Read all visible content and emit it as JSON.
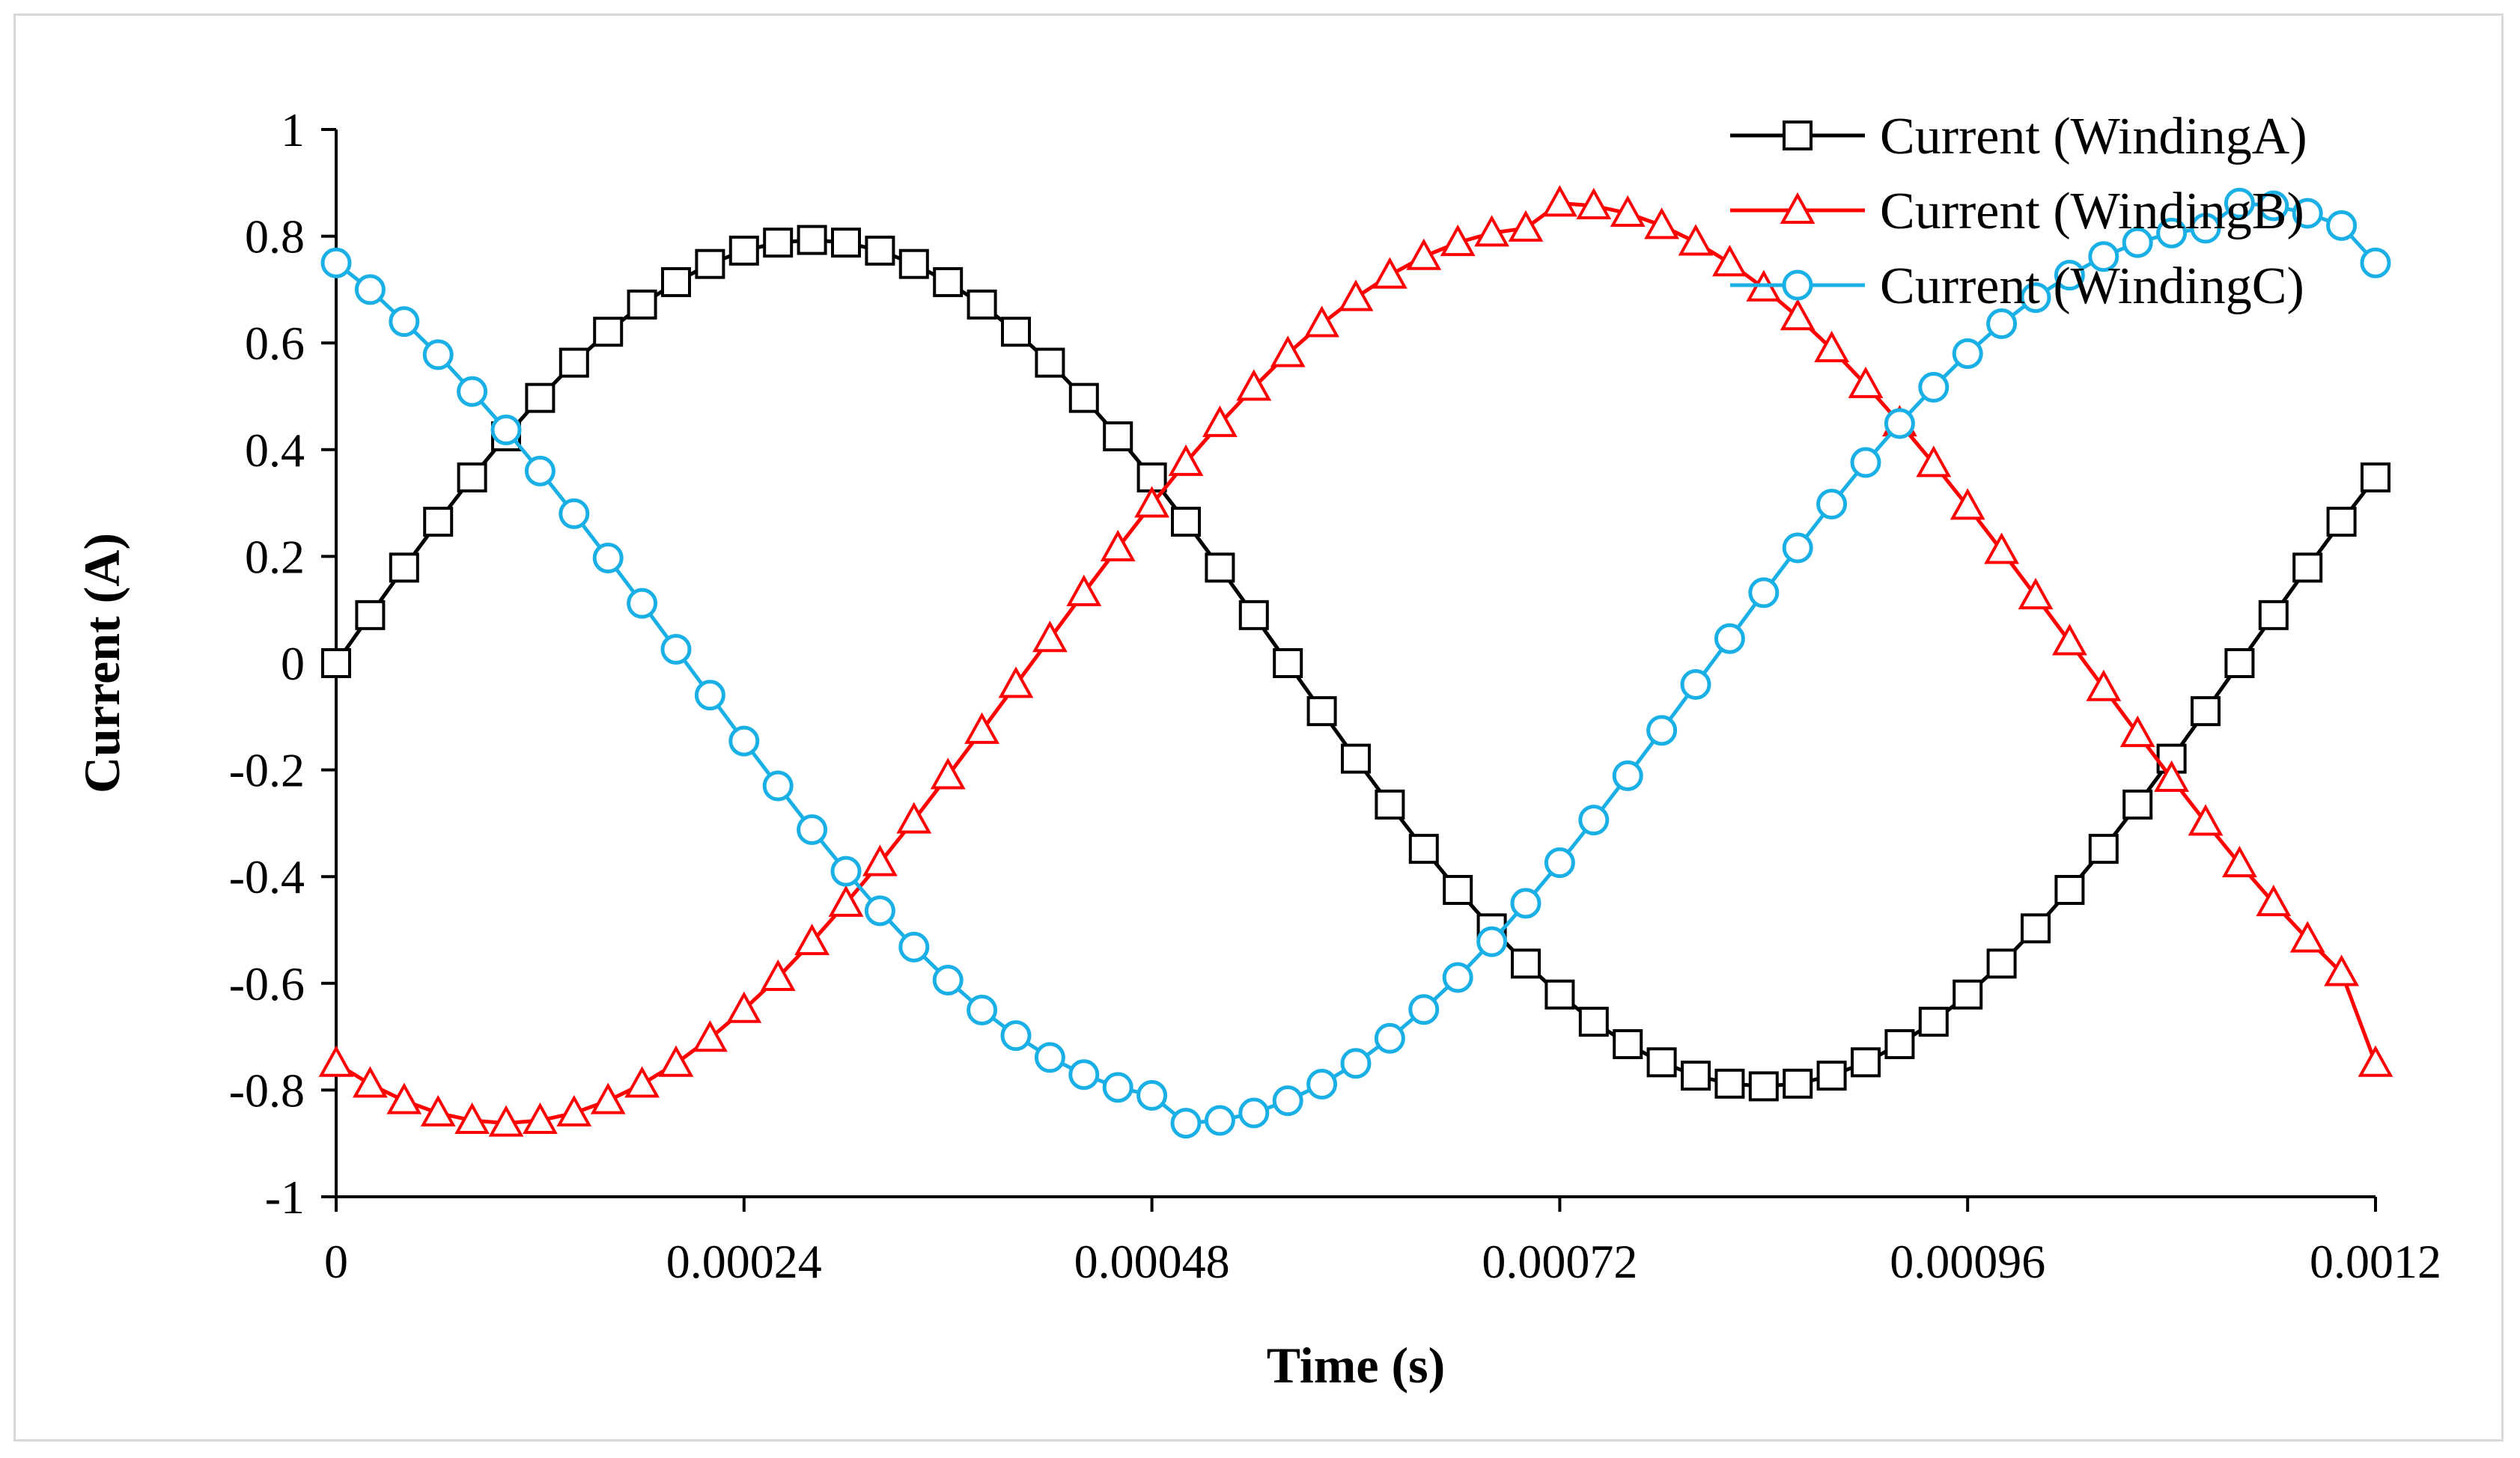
{
  "chart_data": {
    "type": "line",
    "title": "",
    "xlabel": "Time (s)",
    "ylabel": "Current (A)",
    "xlim": [
      0,
      0.0012
    ],
    "ylim": [
      -1,
      1
    ],
    "x_ticks": [
      0,
      0.00024,
      0.00048,
      0.00072,
      0.00096,
      0.0012
    ],
    "x_tick_labels": [
      "0",
      "0.00024",
      "0.00048",
      "0.00072",
      "0.00096",
      "0.0012"
    ],
    "y_ticks": [
      1,
      0.8,
      0.6,
      0.4,
      0.2,
      0,
      -0.2,
      -0.4,
      -0.6,
      -0.8,
      -1
    ],
    "y_tick_labels": [
      "1",
      "0.8",
      "0.6",
      "0.4",
      "0.2",
      "0",
      "-0.2",
      "-0.4",
      "-0.6",
      "-0.8",
      "-1"
    ],
    "grid": false,
    "legend_position": "top-right",
    "x": [
      0,
      2e-05,
      4e-05,
      6e-05,
      8e-05,
      0.0001,
      0.00012,
      0.00014,
      0.00016,
      0.00018,
      0.0002,
      0.00022,
      0.00024,
      0.00026,
      0.00028,
      0.0003,
      0.00032,
      0.00034,
      0.00036,
      0.00038,
      0.0004,
      0.00042,
      0.00044,
      0.00046,
      0.00048,
      0.0005,
      0.00052,
      0.00054,
      0.00056,
      0.00058,
      0.0006,
      0.00062,
      0.00064,
      0.00066,
      0.00068,
      0.0007,
      0.00072,
      0.00074,
      0.00076,
      0.00078,
      0.0008,
      0.00082,
      0.00084,
      0.00086,
      0.00088,
      0.0009,
      0.00092,
      0.00094,
      0.00096,
      0.00098,
      0.001,
      0.00102,
      0.00104,
      0.00106,
      0.00108,
      0.0011,
      0.00112,
      0.00114,
      0.00116,
      0.00118,
      0.0012
    ],
    "series": [
      {
        "name": "Current (WindingA)",
        "color": "#000000",
        "marker": "square",
        "values": [
          0,
          0.09,
          0.179,
          0.265,
          0.348,
          0.425,
          0.497,
          0.563,
          0.621,
          0.672,
          0.714,
          0.748,
          0.773,
          0.788,
          0.793,
          0.788,
          0.773,
          0.748,
          0.714,
          0.672,
          0.621,
          0.563,
          0.497,
          0.425,
          0.348,
          0.265,
          0.179,
          0.09,
          0,
          -0.09,
          -0.179,
          -0.265,
          -0.348,
          -0.425,
          -0.497,
          -0.563,
          -0.621,
          -0.672,
          -0.714,
          -0.748,
          -0.773,
          -0.788,
          -0.793,
          -0.788,
          -0.773,
          -0.748,
          -0.714,
          -0.672,
          -0.621,
          -0.563,
          -0.497,
          -0.425,
          -0.348,
          -0.265,
          -0.179,
          -0.09,
          0,
          0.09,
          0.179,
          0.265,
          0.348
        ]
      },
      {
        "name": "Current (WindingB)",
        "color": "#ff0000",
        "marker": "triangle",
        "values": [
          -0.75,
          -0.789,
          -0.82,
          -0.843,
          -0.857,
          -0.862,
          -0.857,
          -0.843,
          -0.82,
          -0.789,
          -0.75,
          -0.703,
          -0.649,
          -0.589,
          -0.522,
          -0.45,
          -0.374,
          -0.294,
          -0.211,
          -0.126,
          -0.04,
          0.046,
          0.132,
          0.216,
          0.298,
          0.376,
          0.449,
          0.517,
          0.58,
          0.636,
          0.685,
          0.727,
          0.762,
          0.788,
          0.806,
          0.815,
          0.862,
          0.857,
          0.843,
          0.82,
          0.789,
          0.75,
          0.703,
          0.649,
          0.589,
          0.522,
          0.45,
          0.374,
          0.294,
          0.211,
          0.126,
          0.04,
          -0.046,
          -0.132,
          -0.216,
          -0.298,
          -0.376,
          -0.449,
          -0.517,
          -0.58,
          -0.75
        ]
      },
      {
        "name": "Current (WindingC)",
        "color": "#1ab0e6",
        "marker": "circle",
        "values": [
          0.75,
          0.7,
          0.64,
          0.578,
          0.509,
          0.437,
          0.36,
          0.28,
          0.197,
          0.112,
          0.026,
          -0.06,
          -0.146,
          -0.23,
          -0.312,
          -0.39,
          -0.464,
          -0.532,
          -0.594,
          -0.65,
          -0.698,
          -0.739,
          -0.771,
          -0.795,
          -0.81,
          -0.862,
          -0.857,
          -0.843,
          -0.82,
          -0.789,
          -0.75,
          -0.703,
          -0.649,
          -0.589,
          -0.522,
          -0.45,
          -0.374,
          -0.294,
          -0.211,
          -0.126,
          -0.04,
          0.046,
          0.132,
          0.216,
          0.298,
          0.376,
          0.449,
          0.517,
          0.58,
          0.636,
          0.685,
          0.727,
          0.762,
          0.788,
          0.806,
          0.815,
          0.862,
          0.857,
          0.843,
          0.82,
          0.75
        ]
      }
    ]
  }
}
